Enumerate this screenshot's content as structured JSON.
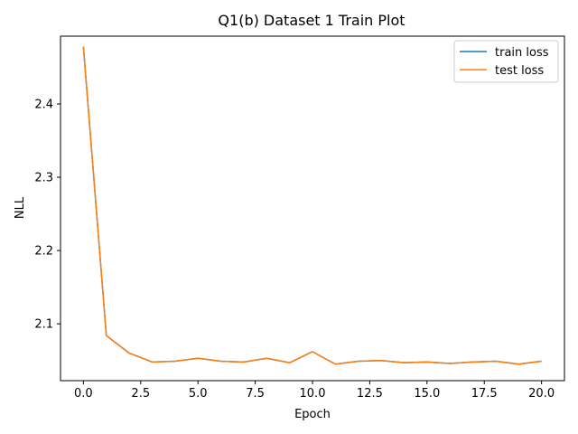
{
  "chart_data": {
    "type": "line",
    "title": "Q1(b) Dataset 1 Train Plot",
    "xlabel": "Epoch",
    "ylabel": "NLL",
    "xlim": [
      -1.0,
      21.0
    ],
    "ylim": [
      2.0225,
      2.4925
    ],
    "x_ticks": [
      0.0,
      2.5,
      5.0,
      7.5,
      10.0,
      12.5,
      15.0,
      17.5,
      20.0
    ],
    "x_tick_labels": [
      "0.0",
      "2.5",
      "5.0",
      "7.5",
      "10.0",
      "12.5",
      "15.0",
      "17.5",
      "20.0"
    ],
    "y_ticks": [
      2.1,
      2.2,
      2.3,
      2.4
    ],
    "y_tick_labels": [
      "2.1",
      "2.2",
      "2.3",
      "2.4"
    ],
    "grid": false,
    "legend_position": "top-right",
    "x": [
      0,
      1,
      2,
      3,
      4,
      5,
      6,
      7,
      8,
      9,
      10,
      11,
      12,
      13,
      14,
      15,
      16,
      17,
      18,
      19,
      20
    ],
    "series": [
      {
        "name": "train loss",
        "color": "#1f77b4",
        "values": [
          2.478,
          2.084,
          2.06,
          2.048,
          2.049,
          2.053,
          2.049,
          2.048,
          2.053,
          2.047,
          2.062,
          2.045,
          2.049,
          2.05,
          2.047,
          2.048,
          2.046,
          2.048,
          2.049,
          2.045,
          2.049
        ]
      },
      {
        "name": "test loss",
        "color": "#ff7f0e",
        "values": [
          2.478,
          2.084,
          2.06,
          2.048,
          2.049,
          2.053,
          2.049,
          2.048,
          2.053,
          2.047,
          2.062,
          2.045,
          2.049,
          2.05,
          2.047,
          2.048,
          2.046,
          2.048,
          2.049,
          2.045,
          2.049
        ]
      }
    ]
  }
}
